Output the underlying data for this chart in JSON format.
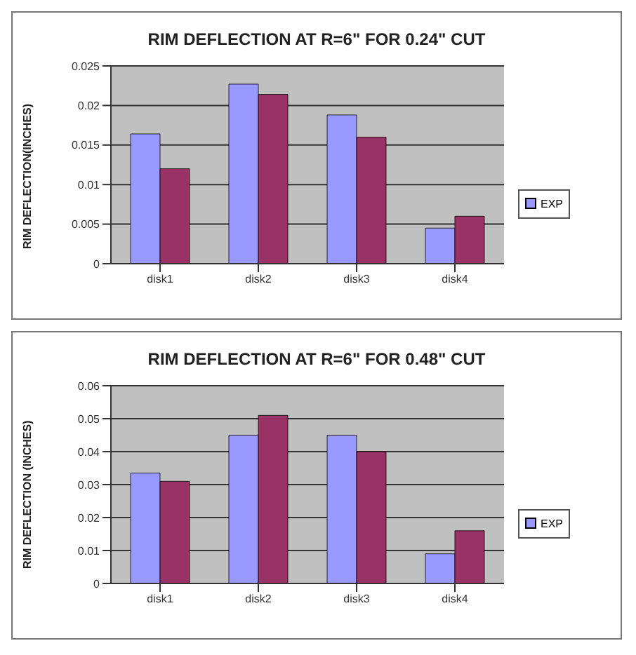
{
  "chart_data": [
    {
      "type": "bar",
      "title": "RIM DEFLECTION AT R=6\" FOR 0.24\" CUT",
      "ylabel": "RIM DEFLECTION(INCHES)",
      "categories": [
        "disk1",
        "disk2",
        "disk3",
        "disk4"
      ],
      "series": [
        {
          "name": "EXP",
          "color": "#9999ff",
          "values": [
            0.0164,
            0.0227,
            0.0188,
            0.0045
          ]
        },
        {
          "color": "#993366",
          "values": [
            0.012,
            0.0214,
            0.016,
            0.006
          ]
        }
      ],
      "ylim": [
        0,
        0.025
      ],
      "yticks": [
        0,
        0.005,
        0.01,
        0.015,
        0.02,
        0.025
      ],
      "grid": "y",
      "legend": "right"
    },
    {
      "type": "bar",
      "title": "RIM DEFLECTION AT R=6\" FOR 0.48\" CUT",
      "ylabel": "RIM DEFLECTION (INCHES)",
      "categories": [
        "disk1",
        "disk2",
        "disk3",
        "disk4"
      ],
      "series": [
        {
          "name": "EXP",
          "color": "#9999ff",
          "values": [
            0.0335,
            0.045,
            0.045,
            0.009
          ]
        },
        {
          "color": "#993366",
          "values": [
            0.031,
            0.051,
            0.04,
            0.016
          ]
        }
      ],
      "ylim": [
        0,
        0.06
      ],
      "yticks": [
        0,
        0.01,
        0.02,
        0.03,
        0.04,
        0.05,
        0.06
      ],
      "grid": "y",
      "legend": "right"
    }
  ]
}
